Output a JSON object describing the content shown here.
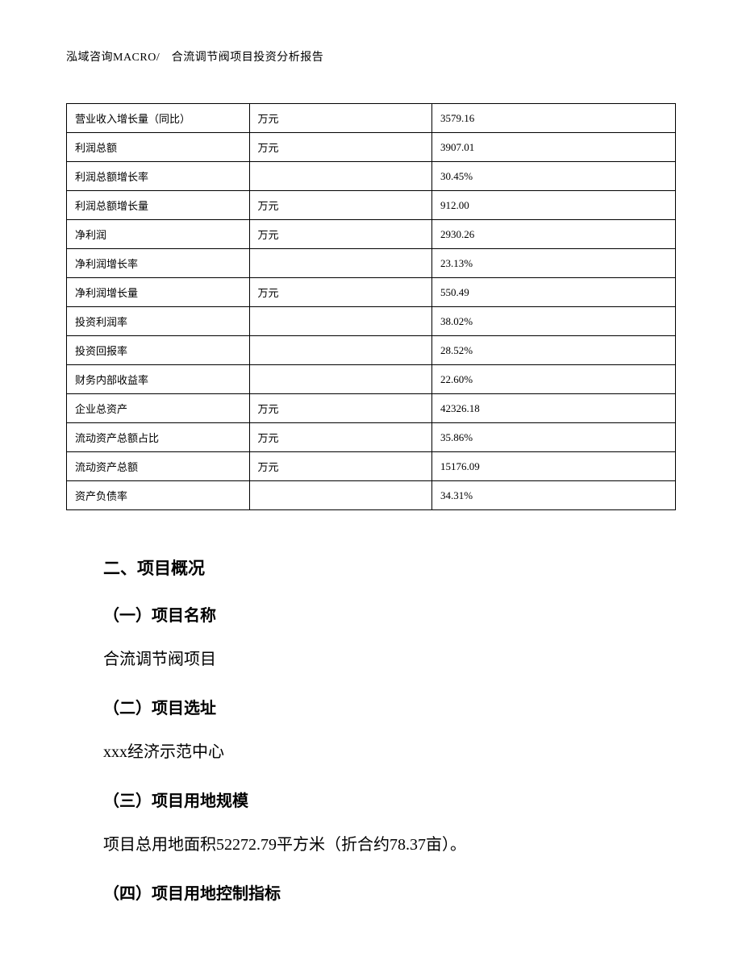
{
  "header": {
    "text": "泓域咨询MACRO/　合流调节阀项目投资分析报告"
  },
  "table": {
    "columns": [
      "label",
      "unit",
      "value"
    ],
    "rows": [
      {
        "label": "营业收入增长量（同比）",
        "unit": "万元",
        "value": "3579.16"
      },
      {
        "label": "利润总额",
        "unit": "万元",
        "value": "3907.01"
      },
      {
        "label": "利润总额增长率",
        "unit": "",
        "value": "30.45%"
      },
      {
        "label": "利润总额增长量",
        "unit": "万元",
        "value": "912.00"
      },
      {
        "label": "净利润",
        "unit": "万元",
        "value": "2930.26"
      },
      {
        "label": "净利润增长率",
        "unit": "",
        "value": "23.13%"
      },
      {
        "label": "净利润增长量",
        "unit": "万元",
        "value": "550.49"
      },
      {
        "label": "投资利润率",
        "unit": "",
        "value": "38.02%"
      },
      {
        "label": "投资回报率",
        "unit": "",
        "value": "28.52%"
      },
      {
        "label": "财务内部收益率",
        "unit": "",
        "value": "22.60%"
      },
      {
        "label": "企业总资产",
        "unit": "万元",
        "value": "42326.18"
      },
      {
        "label": "流动资产总额占比",
        "unit": "万元",
        "value": "35.86%"
      },
      {
        "label": "流动资产总额",
        "unit": "万元",
        "value": "15176.09"
      },
      {
        "label": "资产负债率",
        "unit": "",
        "value": "34.31%"
      }
    ]
  },
  "sections": {
    "main_heading": "二、项目概况",
    "sub1_heading": "（一）项目名称",
    "sub1_text": "合流调节阀项目",
    "sub2_heading": "（二）项目选址",
    "sub2_text": "xxx经济示范中心",
    "sub3_heading": "（三）项目用地规模",
    "sub3_text": "项目总用地面积52272.79平方米（折合约78.37亩）。",
    "sub4_heading": "（四）项目用地控制指标"
  }
}
